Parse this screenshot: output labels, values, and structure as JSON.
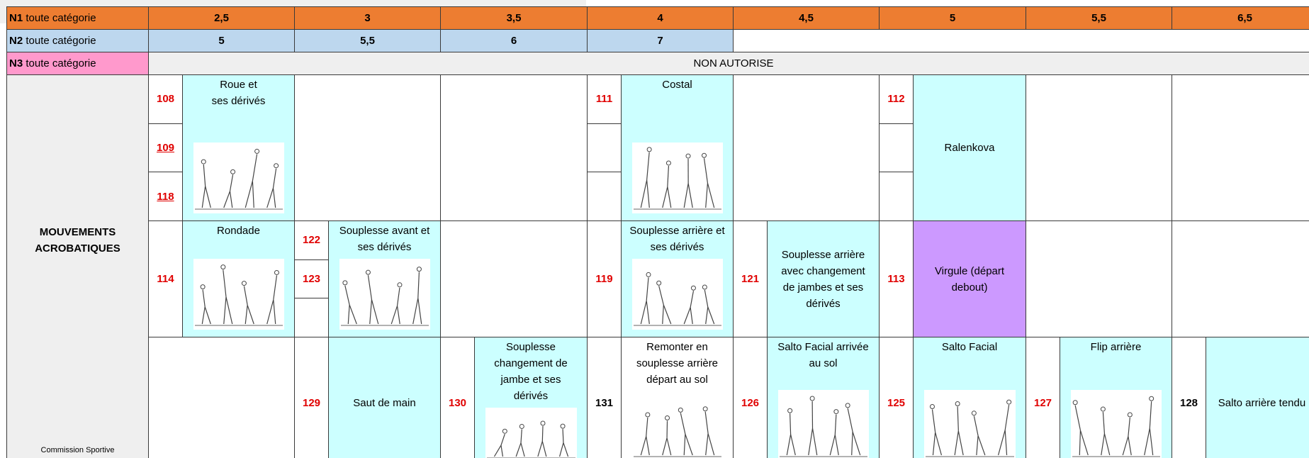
{
  "header_rows": [
    {
      "level": "N1",
      "label": "toute catégorie",
      "values": [
        "2,5",
        "3",
        "3,5",
        "4",
        "4,5",
        "5",
        "5,5",
        "6,5"
      ]
    },
    {
      "level": "N2",
      "label": "toute catégorie",
      "values": [
        "5",
        "5,5",
        "6",
        "7"
      ]
    },
    {
      "level": "N3",
      "label": "toute catégorie",
      "note": "NON AUTORISE"
    }
  ],
  "section_label": "MOUVEMENTS\nACROBATIQUES",
  "footer": "Commission Sportive",
  "body": {
    "rows": [
      {
        "cells": [
          {
            "codes": [
              "108",
              "109",
              "118"
            ],
            "underline": [
              false,
              true,
              true
            ],
            "name": "Roue et\nses dérivés",
            "fill": "#ccffff",
            "figure": true
          },
          null,
          null,
          {
            "codes": [
              "111",
              null,
              null
            ],
            "name": "Costal",
            "fill": "#ccffff",
            "figure": true
          },
          null,
          {
            "codes": [
              "112",
              null,
              null
            ],
            "name": "Ralenkova",
            "fill": "#ccffff",
            "figure": false
          },
          null,
          null
        ]
      },
      {
        "cells": [
          {
            "codes": [
              "114"
            ],
            "name": "Rondade",
            "fill": "#ccffff",
            "figure": true
          },
          {
            "codes": [
              "122",
              "123",
              null
            ],
            "name": "Souplesse avant et\nses dérivés",
            "fill": "#ccffff",
            "figure": true
          },
          null,
          {
            "codes": [
              "119"
            ],
            "name": "Souplesse arrière et\nses dérivés",
            "fill": "#ccffff",
            "figure": true
          },
          {
            "codes": [
              "121"
            ],
            "name": "Souplesse arrière\navec changement\nde jambes et ses\ndérivés",
            "fill": "#ccffff",
            "figure": false
          },
          {
            "codes": [
              "113"
            ],
            "name": "Virgule (départ\ndebout)",
            "fill": "#cc99ff",
            "figure": false
          },
          null,
          null
        ]
      },
      {
        "cells": [
          null,
          {
            "codes": [
              "129"
            ],
            "name": "Saut de main",
            "fill": "#ccffff",
            "figure": false
          },
          {
            "codes": [
              "130"
            ],
            "name": "Souplesse\nchangement de\njambe et ses\ndérivés",
            "fill": "#ccffff",
            "figure": true
          },
          {
            "codes": [
              "131"
            ],
            "code_color": "#000000",
            "name": "Remonter en\nsouplesse arrière\ndépart au sol",
            "fill": "#ffffff",
            "figure": true
          },
          {
            "codes": [
              "126"
            ],
            "name": "Salto Facial arrivée\nau sol",
            "fill": "#ccffff",
            "figure": true
          },
          {
            "codes": [
              "125"
            ],
            "name": "Salto Facial",
            "fill": "#ccffff",
            "figure": true
          },
          {
            "codes": [
              "127"
            ],
            "name": "Flip arrière",
            "fill": "#ccffff",
            "figure": true
          },
          {
            "codes": [
              "128"
            ],
            "code_color": "#000000",
            "name": "Salto arrière tendu",
            "fill": "#ccffff",
            "figure": false
          }
        ]
      }
    ]
  }
}
